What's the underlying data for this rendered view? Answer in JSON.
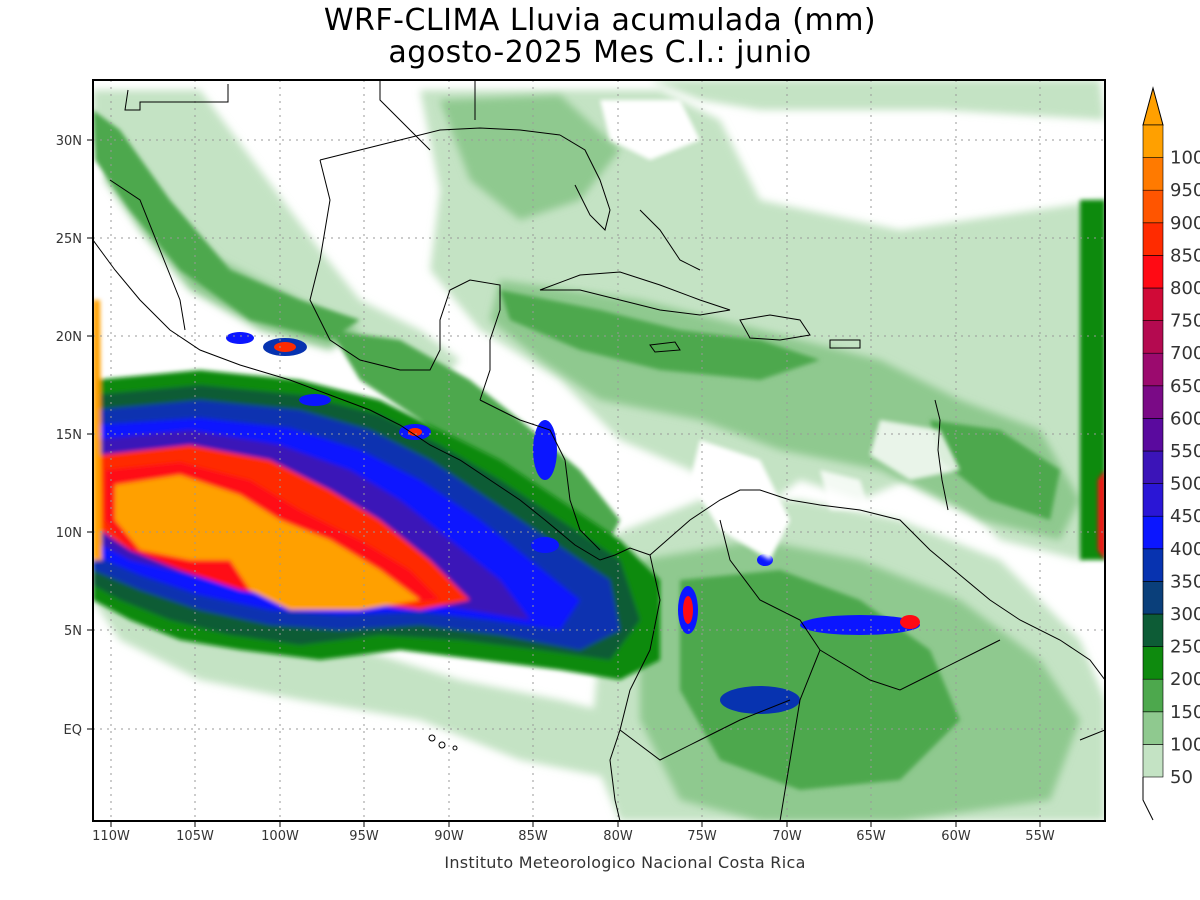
{
  "title": {
    "line1": "WRF-CLIMA Lluvia acumulada (mm)",
    "line2": "agosto-2025 Mes C.I.: junio"
  },
  "credit": "Instituto Meteorologico Nacional Costa Rica",
  "axes": {
    "lon_ticks": [
      "110W",
      "105W",
      "100W",
      "95W",
      "90W",
      "85W",
      "80W",
      "75W",
      "70W",
      "65W",
      "60W",
      "55W"
    ],
    "lat_ticks": [
      "30N",
      "25N",
      "20N",
      "15N",
      "10N",
      "5N",
      "EQ"
    ]
  },
  "legend": {
    "labels": [
      "50",
      "100",
      "150",
      "200",
      "250",
      "300",
      "350",
      "400",
      "450",
      "500",
      "550",
      "600",
      "650",
      "700",
      "750",
      "800",
      "850",
      "900",
      "950",
      "1000"
    ],
    "colors": [
      "#c4e3c4",
      "#8fc98f",
      "#4da84d",
      "#0e8a0e",
      "#0d5c36",
      "#0a3f7a",
      "#0733b0",
      "#0b16ff",
      "#2a16d6",
      "#3b14b8",
      "#5a0a9e",
      "#7a0a86",
      "#9b0a6e",
      "#b40a50",
      "#d00a37",
      "#ff0a14",
      "#ff2b00",
      "#ff5500",
      "#ff7a00",
      "#ffa000"
    ]
  },
  "map": {
    "land_color": "#ffffff",
    "border_color": "#000000",
    "gridline_color": "#999999"
  }
}
